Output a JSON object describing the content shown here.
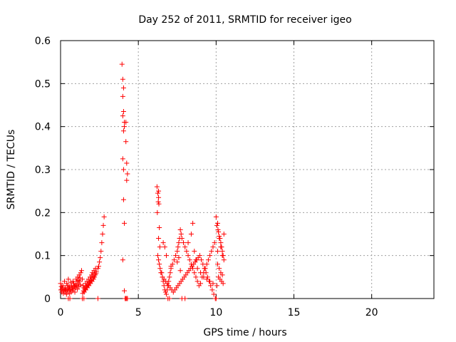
{
  "chart_data": {
    "type": "scatter",
    "title": "Day 252 of 2011, SRMTID for receiver igeo",
    "xlabel": "GPS time / hours",
    "ylabel": "SRMTID / TECUs",
    "xlim": [
      0,
      24
    ],
    "ylim": [
      0,
      0.6
    ],
    "xticks": [
      0,
      5,
      10,
      15,
      20
    ],
    "yticks": [
      0,
      0.1,
      0.2,
      0.3,
      0.4,
      0.5,
      0.6
    ],
    "xtick_labels": [
      "0",
      "5",
      "10",
      "15",
      "20"
    ],
    "ytick_labels": [
      "0",
      "0.1",
      "0.2",
      "0.3",
      "0.4",
      "0.5",
      "0.6"
    ],
    "grid": true,
    "marker": "+",
    "color": "#ff0000",
    "series": [
      {
        "x": [
          0.0,
          0.05,
          0.1,
          0.15,
          0.2,
          0.25,
          0.3,
          0.35,
          0.4,
          0.45,
          0.5,
          0.55,
          0.6,
          0.65,
          0.7,
          0.75,
          0.8,
          0.85,
          0.9,
          0.95,
          1.0,
          1.05,
          1.1,
          1.15,
          1.2,
          1.25,
          1.3,
          1.35,
          1.4,
          1.45,
          1.5,
          1.55,
          1.6,
          1.65,
          1.7,
          1.75,
          1.8,
          1.85,
          1.9,
          1.95,
          2.0,
          2.05,
          2.1,
          2.15,
          2.2,
          2.25,
          2.3,
          2.4,
          2.45,
          2.5,
          2.55,
          2.6,
          2.65,
          2.7,
          2.75,
          2.8,
          0.02,
          0.08,
          0.12,
          0.18,
          0.22,
          0.28,
          0.33,
          0.38,
          0.42,
          0.48,
          0.52,
          0.58,
          0.62,
          0.68,
          0.72,
          0.78,
          0.82,
          0.88,
          0.92,
          0.98,
          1.02,
          1.08,
          1.12,
          1.18,
          1.22,
          1.28,
          1.42,
          1.48,
          1.52,
          1.58,
          1.62,
          1.68,
          1.72,
          1.78,
          1.82,
          1.88,
          1.92,
          1.98,
          2.02,
          2.08,
          2.12,
          2.18,
          2.22,
          2.28,
          0.5,
          0.6,
          1.4,
          1.5,
          2.4,
          3.95,
          4.0,
          4.05,
          4.0,
          4.05,
          4.1,
          4.0,
          4.05,
          4.2,
          4.1,
          4.2,
          4.25,
          4.0,
          4.05,
          4.3,
          4.25,
          4.05,
          4.1,
          4.0,
          4.1,
          4.3,
          4.25,
          4.2,
          4.15,
          6.2,
          6.3,
          6.25,
          6.3,
          6.28,
          6.32,
          6.22,
          6.35,
          6.3,
          6.38,
          6.25,
          6.3,
          6.35,
          6.4,
          6.5,
          6.55,
          6.6,
          6.65,
          6.7,
          6.75,
          6.8,
          6.85,
          6.9,
          6.95,
          7.0,
          7.05,
          7.1,
          7.2,
          7.3,
          7.4,
          7.5,
          7.55,
          7.6,
          7.65,
          7.7,
          7.75,
          7.8,
          7.9,
          8.0,
          8.1,
          8.2,
          8.3,
          8.4,
          8.5,
          8.6,
          8.7,
          8.8,
          8.9,
          9.0,
          9.1,
          9.2,
          9.3,
          9.4,
          9.5,
          9.6,
          9.7,
          9.8,
          9.9,
          6.45,
          6.55,
          6.65,
          6.75,
          6.85,
          6.95,
          7.05,
          7.15,
          7.25,
          7.35,
          7.45,
          7.55,
          7.65,
          7.75,
          7.85,
          7.95,
          8.05,
          8.15,
          8.25,
          8.35,
          8.45,
          8.55,
          8.65,
          8.75,
          8.85,
          8.95,
          9.05,
          9.15,
          9.25,
          9.35,
          9.45,
          9.55,
          9.65,
          9.75,
          9.85,
          6.6,
          6.7,
          6.8,
          7.1,
          7.5,
          7.6,
          7.7,
          8.2,
          8.4,
          8.5,
          8.6,
          8.7,
          8.8,
          9.0,
          9.2,
          9.4,
          9.6,
          9.8,
          6.9,
          7.0,
          7.8,
          8.0,
          10.0,
          10.05,
          10.1,
          10.12,
          10.15,
          10.2,
          10.25,
          10.3,
          10.35,
          10.4,
          10.45,
          10.5,
          10.1,
          10.2,
          10.3,
          10.4,
          10.15,
          10.25,
          10.35,
          10.45,
          10.05,
          10.5,
          10.2,
          10.3,
          10.1,
          10.4,
          9.95,
          10.0
        ],
        "y": [
          0.035,
          0.028,
          0.022,
          0.03,
          0.018,
          0.04,
          0.025,
          0.02,
          0.035,
          0.03,
          0.045,
          0.028,
          0.022,
          0.038,
          0.03,
          0.025,
          0.04,
          0.035,
          0.028,
          0.032,
          0.045,
          0.04,
          0.05,
          0.042,
          0.055,
          0.048,
          0.06,
          0.065,
          0.045,
          0.03,
          0.025,
          0.022,
          0.035,
          0.028,
          0.04,
          0.032,
          0.045,
          0.038,
          0.05,
          0.042,
          0.055,
          0.06,
          0.052,
          0.065,
          0.058,
          0.07,
          0.062,
          0.07,
          0.075,
          0.085,
          0.095,
          0.11,
          0.13,
          0.15,
          0.17,
          0.19,
          0.02,
          0.015,
          0.025,
          0.012,
          0.018,
          0.022,
          0.015,
          0.01,
          0.02,
          0.018,
          0.025,
          0.012,
          0.02,
          0.015,
          0.025,
          0.018,
          0.022,
          0.028,
          0.015,
          0.025,
          0.03,
          0.022,
          0.035,
          0.028,
          0.04,
          0.032,
          0.012,
          0.018,
          0.015,
          0.022,
          0.02,
          0.028,
          0.025,
          0.032,
          0.03,
          0.038,
          0.035,
          0.042,
          0.04,
          0.048,
          0.045,
          0.05,
          0.055,
          0.058,
          0.0,
          0.0,
          0.0,
          0.0,
          0.0,
          0.545,
          0.51,
          0.49,
          0.47,
          0.435,
          0.41,
          0.425,
          0.39,
          0.41,
          0.4,
          0.365,
          0.315,
          0.325,
          0.3,
          0.29,
          0.275,
          0.23,
          0.175,
          0.09,
          0.018,
          0.0,
          0.0,
          0.0,
          0.0,
          0.26,
          0.25,
          0.245,
          0.235,
          0.225,
          0.22,
          0.2,
          0.165,
          0.14,
          0.12,
          0.1,
          0.09,
          0.08,
          0.07,
          0.06,
          0.05,
          0.04,
          0.03,
          0.02,
          0.015,
          0.01,
          0.02,
          0.03,
          0.04,
          0.05,
          0.06,
          0.07,
          0.08,
          0.09,
          0.1,
          0.11,
          0.12,
          0.13,
          0.14,
          0.16,
          0.15,
          0.14,
          0.13,
          0.12,
          0.11,
          0.1,
          0.09,
          0.08,
          0.07,
          0.06,
          0.05,
          0.04,
          0.03,
          0.035,
          0.05,
          0.06,
          0.07,
          0.08,
          0.09,
          0.1,
          0.11,
          0.12,
          0.13,
          0.06,
          0.05,
          0.045,
          0.04,
          0.035,
          0.03,
          0.025,
          0.02,
          0.015,
          0.02,
          0.025,
          0.03,
          0.035,
          0.04,
          0.045,
          0.05,
          0.055,
          0.06,
          0.065,
          0.07,
          0.075,
          0.08,
          0.085,
          0.09,
          0.095,
          0.1,
          0.09,
          0.08,
          0.07,
          0.06,
          0.05,
          0.04,
          0.03,
          0.02,
          0.01,
          0.13,
          0.12,
          0.1,
          0.075,
          0.085,
          0.095,
          0.065,
          0.13,
          0.15,
          0.175,
          0.11,
          0.09,
          0.07,
          0.06,
          0.05,
          0.045,
          0.04,
          0.035,
          0.0,
          0.0,
          0.0,
          0.0,
          0.19,
          0.17,
          0.175,
          0.16,
          0.155,
          0.145,
          0.14,
          0.13,
          0.12,
          0.11,
          0.1,
          0.09,
          0.08,
          0.07,
          0.06,
          0.055,
          0.05,
          0.045,
          0.04,
          0.035,
          0.03,
          0.15,
          0.14,
          0.12,
          0.11,
          0.1,
          0.0,
          0.0
        ]
      }
    ]
  }
}
